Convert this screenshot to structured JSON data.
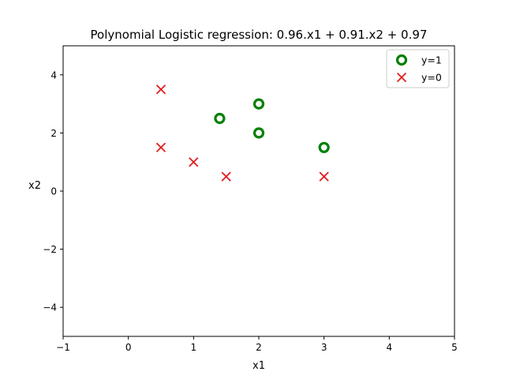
{
  "chart_data": {
    "type": "scatter",
    "title": "Polynomial Logistic regression: 0.96.x1 + 0.91.x2 + 0.97",
    "xlabel": "x1",
    "ylabel": "x2",
    "xlim": [
      -1,
      5
    ],
    "ylim": [
      -5,
      5
    ],
    "xticks": [
      -1,
      0,
      1,
      2,
      3,
      4,
      5
    ],
    "yticks": [
      -4,
      -2,
      0,
      2,
      4
    ],
    "xtick_labels": [
      "−1",
      "0",
      "1",
      "2",
      "3",
      "4",
      "5"
    ],
    "ytick_labels": [
      "−4",
      "−2",
      "0",
      "2",
      "4"
    ],
    "grid": false,
    "legend_position": "top-right",
    "series": [
      {
        "name": "y=1",
        "marker": "circle-open",
        "color": "#008000",
        "x": [
          1.4,
          2.0,
          2.0,
          3.0
        ],
        "y": [
          2.5,
          3.0,
          2.0,
          1.5
        ]
      },
      {
        "name": "y=0",
        "marker": "x",
        "color": "#e41a1c",
        "x": [
          0.5,
          0.5,
          1.0,
          1.5,
          3.0
        ],
        "y": [
          3.5,
          1.5,
          1.0,
          0.5,
          0.5
        ]
      }
    ]
  }
}
